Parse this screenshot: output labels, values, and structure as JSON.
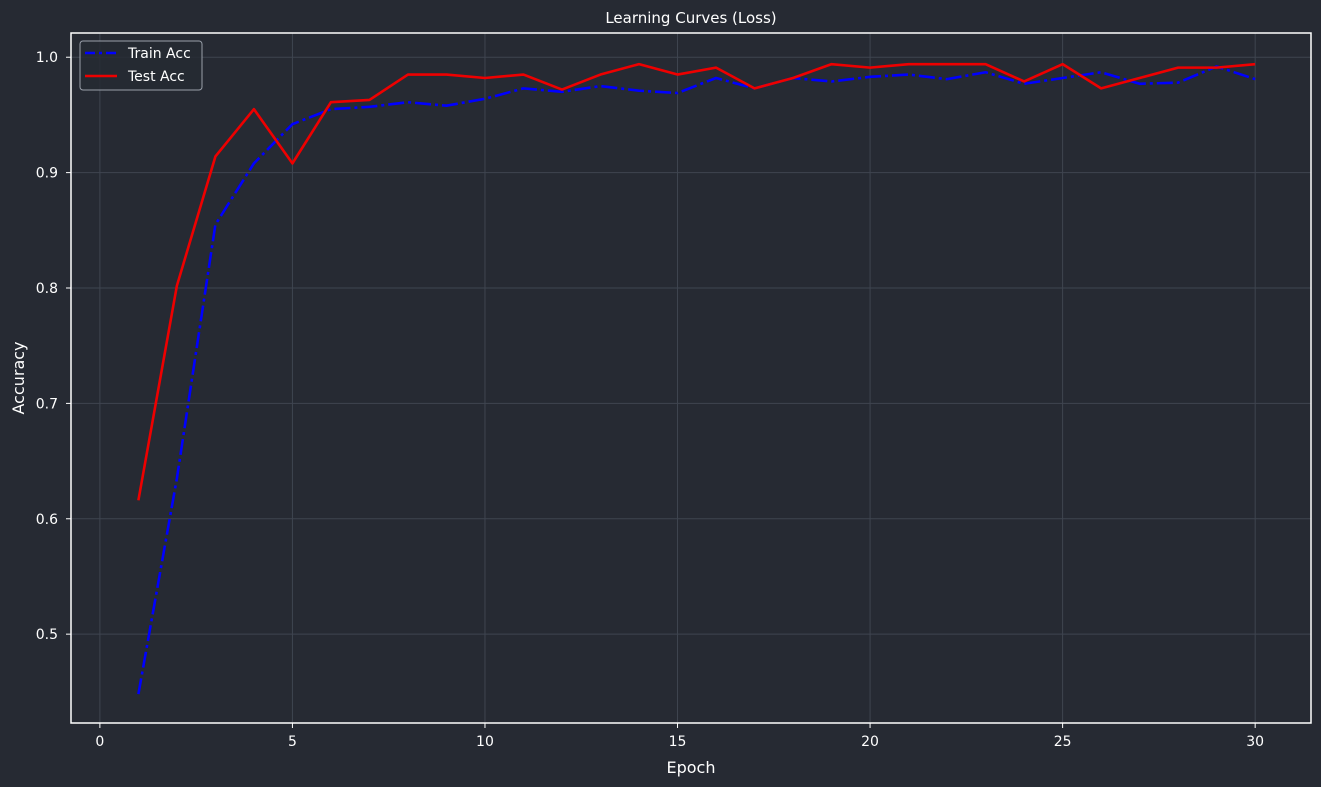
{
  "chart_data": {
    "type": "line",
    "title": "Learning Curves (Loss)",
    "xlabel": "Epoch",
    "ylabel": "Accuracy",
    "xlim": [
      -0.75,
      31.45
    ],
    "ylim": [
      0.423,
      1.021
    ],
    "xticks": [
      0,
      5,
      10,
      15,
      20,
      25,
      30
    ],
    "yticks": [
      0.5,
      0.6,
      0.7,
      0.8,
      0.9,
      1.0
    ],
    "xtick_labels": [
      "0",
      "5",
      "10",
      "15",
      "20",
      "25",
      "30"
    ],
    "ytick_labels": [
      "0.5",
      "0.6",
      "0.7",
      "0.8",
      "0.9",
      "1.0"
    ],
    "grid": true,
    "legend_position": "top-left",
    "colors": {
      "background": "#262a33",
      "grid": "#3f4550",
      "frame": "#ffffff",
      "text": "#ffffff"
    },
    "x": [
      1,
      2,
      3,
      4,
      5,
      6,
      7,
      8,
      9,
      10,
      11,
      12,
      13,
      14,
      15,
      16,
      17,
      18,
      19,
      20,
      21,
      22,
      23,
      24,
      25,
      26,
      27,
      28,
      29,
      30
    ],
    "series": [
      {
        "name": "Train Acc",
        "color": "#0000ff",
        "style": "dashdot",
        "values": [
          0.448,
          0.635,
          0.855,
          0.908,
          0.942,
          0.955,
          0.957,
          0.961,
          0.958,
          0.964,
          0.973,
          0.97,
          0.975,
          0.971,
          0.969,
          0.982,
          0.973,
          0.982,
          0.979,
          0.983,
          0.985,
          0.981,
          0.987,
          0.977,
          0.982,
          0.987,
          0.977,
          0.978,
          0.992,
          0.981
        ]
      },
      {
        "name": "Test Acc",
        "color": "#ee0000",
        "style": "solid",
        "values": [
          0.616,
          0.802,
          0.914,
          0.955,
          0.908,
          0.961,
          0.963,
          0.985,
          0.985,
          0.982,
          0.985,
          0.972,
          0.985,
          0.994,
          0.985,
          0.991,
          0.973,
          0.982,
          0.994,
          0.991,
          0.994,
          0.994,
          0.994,
          0.979,
          0.994,
          0.973,
          0.982,
          0.991,
          0.991,
          0.994
        ]
      }
    ]
  }
}
